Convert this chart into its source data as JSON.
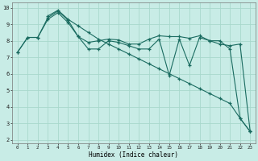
{
  "xlabel": "Humidex (Indice chaleur)",
  "bg_color": "#c8ece6",
  "grid_color": "#a8d8cc",
  "line_color": "#1a6b60",
  "xlim": [
    -0.5,
    23.5
  ],
  "ylim": [
    1.8,
    10.3
  ],
  "xticks": [
    0,
    1,
    2,
    3,
    4,
    5,
    6,
    7,
    8,
    9,
    10,
    11,
    12,
    13,
    14,
    15,
    16,
    17,
    18,
    19,
    20,
    21,
    22,
    23
  ],
  "yticks": [
    2,
    3,
    4,
    5,
    6,
    7,
    8,
    9,
    10
  ],
  "line1_x": [
    0,
    1,
    2,
    3,
    4,
    5,
    6,
    7,
    8,
    9,
    10,
    11,
    12,
    13,
    14,
    15,
    16,
    17,
    18,
    19,
    20,
    21,
    22,
    23
  ],
  "line1_y": [
    7.3,
    8.2,
    8.2,
    9.4,
    9.8,
    9.25,
    8.25,
    7.5,
    7.5,
    8.0,
    7.9,
    7.7,
    7.5,
    7.5,
    8.1,
    5.9,
    8.1,
    6.5,
    8.2,
    8.0,
    8.0,
    7.5,
    3.3,
    2.5
  ],
  "line2_x": [
    3,
    4,
    5,
    6,
    7,
    8,
    9,
    10,
    11,
    12,
    13,
    14,
    15,
    16,
    17,
    18,
    19,
    20,
    21,
    22,
    23
  ],
  "line2_y": [
    9.5,
    9.85,
    9.3,
    8.9,
    8.5,
    8.1,
    7.8,
    7.5,
    7.2,
    6.9,
    6.6,
    6.3,
    6.0,
    5.7,
    5.4,
    5.1,
    4.8,
    4.5,
    4.2,
    3.3,
    2.5
  ],
  "line3_x": [
    0,
    1,
    2,
    3,
    4,
    5,
    6,
    7,
    8,
    9,
    10,
    11,
    12,
    13,
    14,
    15,
    16,
    17,
    18,
    19,
    20,
    21,
    22,
    23
  ],
  "line3_y": [
    7.3,
    8.2,
    8.2,
    9.3,
    9.7,
    9.1,
    8.25,
    7.9,
    8.0,
    8.1,
    8.05,
    7.8,
    7.8,
    8.1,
    8.3,
    8.25,
    8.25,
    8.15,
    8.3,
    8.0,
    7.8,
    7.7,
    7.8,
    2.5
  ]
}
